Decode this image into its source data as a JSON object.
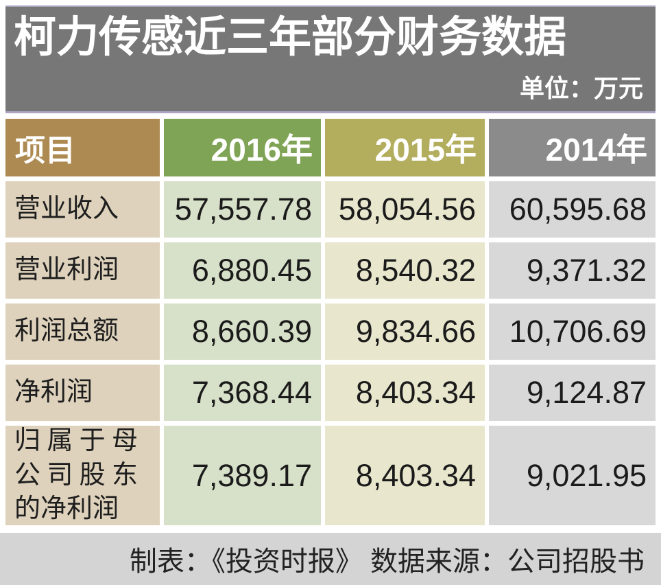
{
  "title": "柯力传感近三年部分财务数据",
  "unit_label": "单位：万元",
  "colors": {
    "title_bg": "#777777",
    "title_border": "#aca4c2",
    "header_item": "#ad8a52",
    "header_2016": "#80a455",
    "header_2015": "#b2ae5e",
    "header_2014": "#8b8b8b",
    "cell_item": "#ded2bc",
    "cell_2016": "#d7e0c8",
    "cell_2015": "#e8e6cc",
    "cell_2014": "#d8d8d8",
    "footer_bg": "#d4d4d4"
  },
  "table": {
    "header": {
      "item": "项目",
      "years": [
        "2016年",
        "2015年",
        "2014年"
      ]
    },
    "rows": [
      {
        "label": "营业收入",
        "values": [
          "57,557.78",
          "58,054.56",
          "60,595.68"
        ]
      },
      {
        "label": "营业利润",
        "values": [
          "6,880.45",
          "8,540.32",
          "9,371.32"
        ]
      },
      {
        "label": "利润总额",
        "values": [
          "8,660.39",
          "9,834.66",
          "10,706.69"
        ]
      },
      {
        "label": "净利润",
        "values": [
          "7,368.44",
          "8,403.34",
          "9,124.87"
        ]
      },
      {
        "label": "归属于母公司股东的净利润",
        "values": [
          "7,389.17",
          "8,403.34",
          "9,021.95"
        ]
      }
    ]
  },
  "footer": {
    "text": "制表：《投资时报》 数据来源：公司招股书"
  },
  "chart_data": {
    "type": "table",
    "title": "柯力传感近三年部分财务数据",
    "unit": "万元",
    "columns": [
      "项目",
      "2016年",
      "2015年",
      "2014年"
    ],
    "rows": [
      [
        "营业收入",
        57557.78,
        58054.56,
        60595.68
      ],
      [
        "营业利润",
        6880.45,
        8540.32,
        9371.32
      ],
      [
        "利润总额",
        8660.39,
        9834.66,
        10706.69
      ],
      [
        "净利润",
        7368.44,
        8403.34,
        9124.87
      ],
      [
        "归属于母公司股东的净利润",
        7389.17,
        8403.34,
        9021.95
      ]
    ],
    "credit": "《投资时报》",
    "source": "公司招股书"
  }
}
